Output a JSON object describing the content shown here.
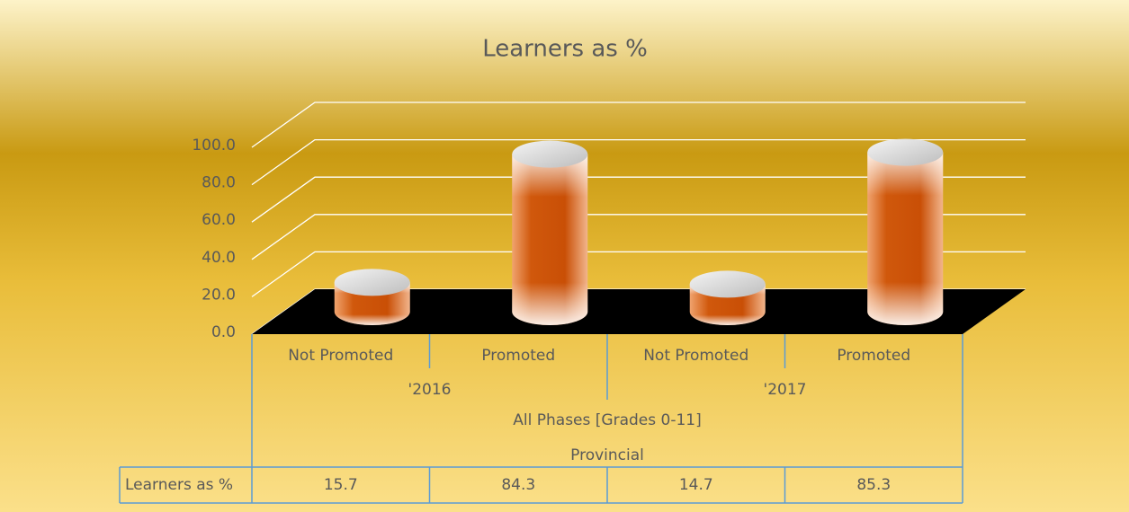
{
  "chart_data": {
    "type": "bar3d-cylinder",
    "title": "Learners as %",
    "categories": [
      "Not Promoted",
      "Promoted",
      "Not Promoted",
      "Promoted"
    ],
    "group_labels": [
      "'2016",
      "'2017"
    ],
    "outer_labels": [
      "All Phases [Grades 0-11]",
      "Provincial"
    ],
    "series": [
      {
        "name": "Learners as %",
        "color": "#d0580c",
        "values": [
          15.7,
          84.3,
          14.7,
          85.3
        ]
      }
    ],
    "ylim": [
      0,
      100
    ],
    "yticks": [
      {
        "value": 0,
        "label": "0.0"
      },
      {
        "value": 20,
        "label": "20.0"
      },
      {
        "value": 40,
        "label": "40.0"
      },
      {
        "value": 60,
        "label": "60.0"
      },
      {
        "value": 80,
        "label": "80.0"
      },
      {
        "value": 100,
        "label": "100.0"
      }
    ],
    "grid": true,
    "data_table": true
  }
}
